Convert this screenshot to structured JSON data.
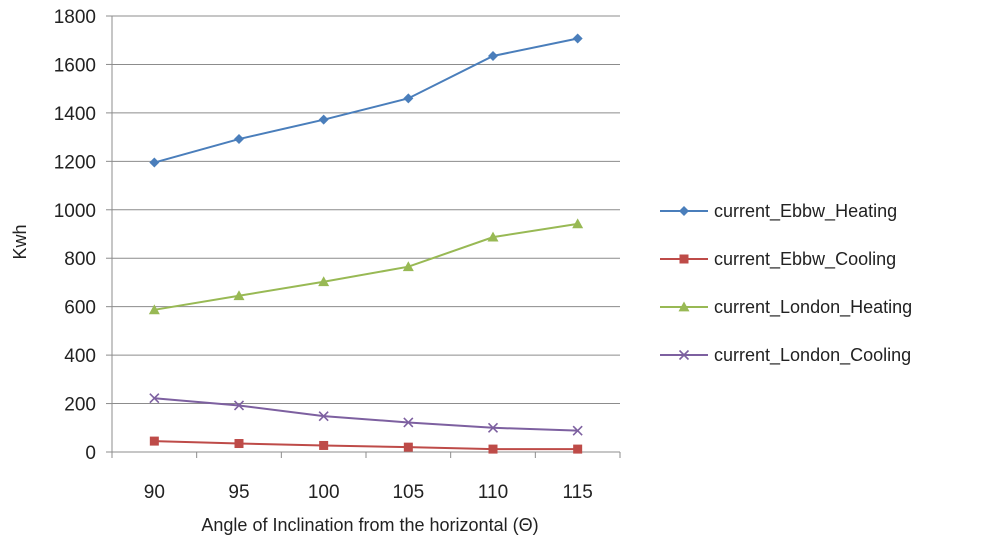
{
  "chart_data": {
    "type": "line",
    "title": "",
    "xlabel": "Angle of Inclination from the horizontal (Θ)",
    "ylabel": "Kwh",
    "categories": [
      "90",
      "95",
      "100",
      "105",
      "110",
      "115"
    ],
    "ylim": [
      0,
      1800
    ],
    "yticks": [
      "0",
      "200",
      "400",
      "600",
      "800",
      "1000",
      "1200",
      "1400",
      "1600",
      "1800"
    ],
    "grid": "horizontal",
    "legend": "right",
    "series": [
      {
        "name": "current_Ebbw_Heating",
        "color": "#4a7ebb",
        "marker": "diamond",
        "values": [
          1195,
          1292,
          1372,
          1460,
          1635,
          1707
        ]
      },
      {
        "name": "current_Ebbw_Cooling",
        "color": "#be4b48",
        "marker": "square",
        "values": [
          45,
          35,
          27,
          20,
          12,
          12
        ]
      },
      {
        "name": "current_London_Heating",
        "color": "#98b954",
        "marker": "triangle",
        "values": [
          587,
          645,
          703,
          765,
          887,
          942
        ]
      },
      {
        "name": "current_London_Cooling",
        "color": "#7d60a0",
        "marker": "x",
        "values": [
          222,
          192,
          148,
          122,
          100,
          88
        ]
      }
    ]
  }
}
